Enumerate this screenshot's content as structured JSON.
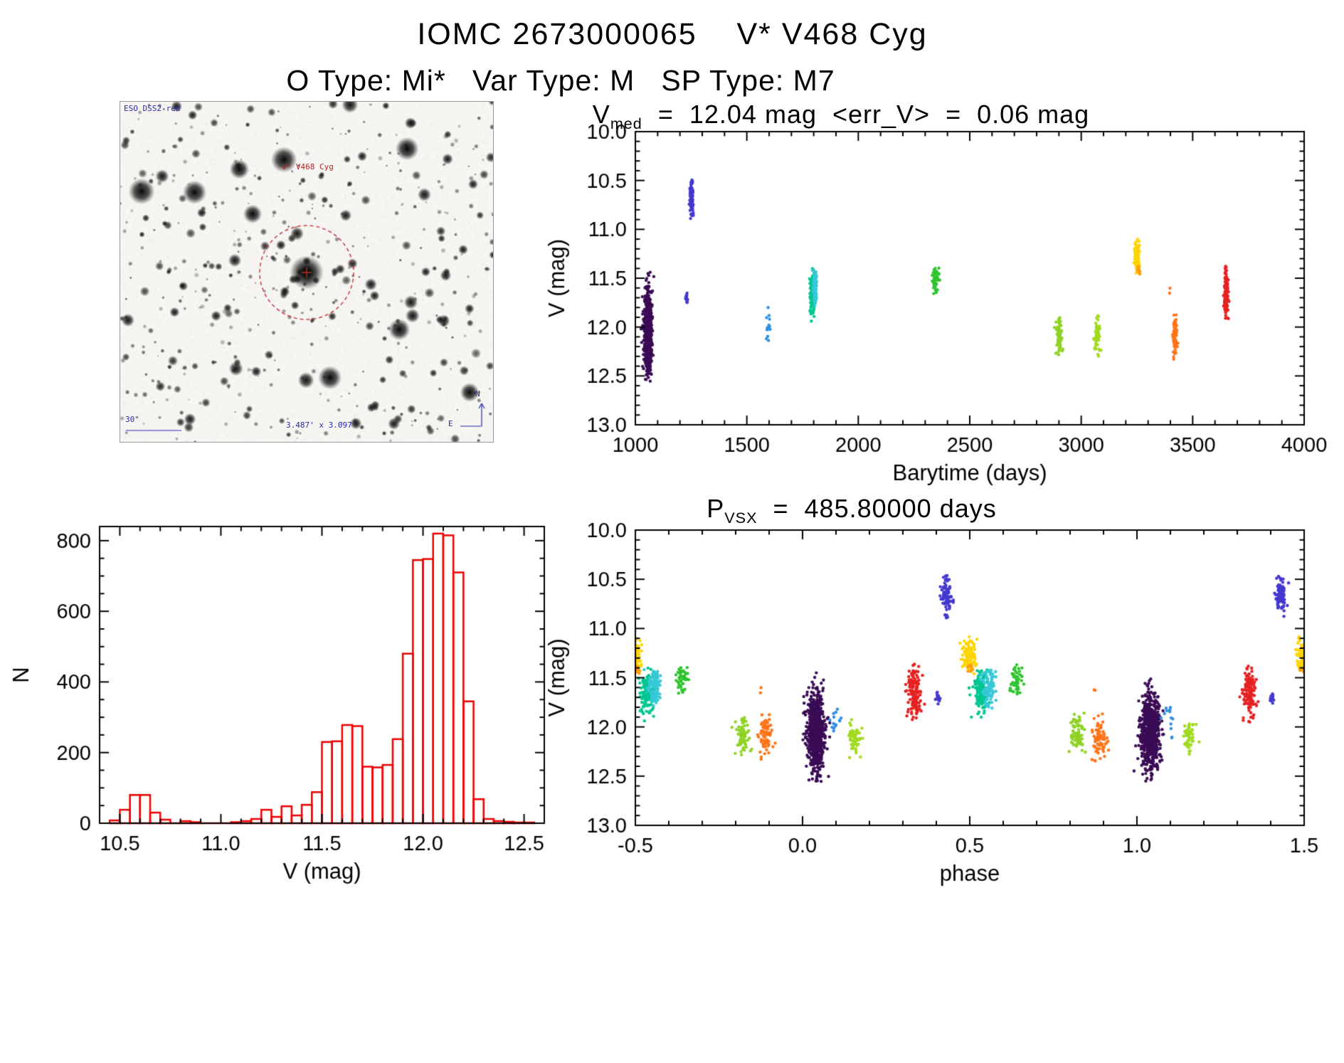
{
  "header": {
    "title": "IOMC 2673000065    V* V468 Cyg",
    "subtitle": "O Type: Mi*   Var Type: M   SP Type: M7"
  },
  "finder": {
    "survey_label": "ESO DSS2-red",
    "star_label": "V* V468 Cyg",
    "scale_label": "30\"",
    "fov_label": "3.487' x 3.097'",
    "compass_north": "N",
    "compass_east": "E",
    "marker_color": "#c03030",
    "annotation_color": "#2b2bb0"
  },
  "chart_data": [
    {
      "id": "lightcurve",
      "type": "scatter",
      "title": {
        "base": "V",
        "sub": "med",
        "rest": "  =  12.04 mag  <err_V>  =  0.06 mag"
      },
      "v_med_mag": 12.04,
      "err_v_mag": 0.06,
      "xlabel": "Barytime (days)",
      "ylabel": "V (mag)",
      "xlim": [
        1000,
        4000
      ],
      "ylim": [
        10.0,
        13.0
      ],
      "y_inverted": true,
      "xtick_vals": [
        1000,
        1500,
        2000,
        2500,
        3000,
        3500,
        4000
      ],
      "xtick_labels": [
        "1000",
        "1500",
        "2000",
        "2500",
        "3000",
        "3500",
        "4000"
      ],
      "ytick_vals": [
        10.0,
        10.5,
        11.0,
        11.5,
        12.0,
        12.5,
        13.0
      ],
      "ytick_labels": [
        "10.0",
        "10.5",
        "11.0",
        "11.5",
        "12.0",
        "12.5",
        "13.0"
      ],
      "xminor": 100,
      "yminor": 0.1,
      "clusters": [
        {
          "label": "epoch1",
          "color": "#3a0c55",
          "n": 700,
          "t": 1057,
          "t_sig": 9,
          "v": 12.06,
          "v_sig": 0.2,
          "v_min": 11.42,
          "v_max": 12.56,
          "phase": 0.04,
          "ph_sig": 0.014
        },
        {
          "label": "epoch2a",
          "color": "#4338cf",
          "n": 14,
          "t": 1231,
          "t_sig": 2,
          "v": 11.71,
          "v_sig": 0.03,
          "v_min": 11.64,
          "v_max": 11.78,
          "phase": 0.405,
          "ph_sig": 0.004
        },
        {
          "label": "epoch2",
          "color": "#4338cf",
          "n": 85,
          "t": 1253,
          "t_sig": 4,
          "v": 10.67,
          "v_sig": 0.1,
          "v_min": 10.46,
          "v_max": 10.92,
          "phase": 0.43,
          "ph_sig": 0.007
        },
        {
          "label": "epoch3",
          "color": "#2f8fe0",
          "n": 14,
          "t": 1598,
          "t_sig": 5,
          "v": 11.98,
          "v_sig": 0.1,
          "v_min": 11.78,
          "v_max": 12.14,
          "phase": 0.095,
          "ph_sig": 0.009
        },
        {
          "label": "epoch4a",
          "color": "#00c690",
          "n": 130,
          "t": 1793,
          "t_sig": 5,
          "v": 11.64,
          "v_sig": 0.12,
          "v_min": 11.4,
          "v_max": 11.94,
          "phase": 0.535,
          "ph_sig": 0.011
        },
        {
          "label": "epoch4b",
          "color": "#38c8d8",
          "n": 95,
          "t": 1806,
          "t_sig": 4,
          "v": 11.58,
          "v_sig": 0.1,
          "v_min": 11.4,
          "v_max": 11.82,
          "phase": 0.557,
          "ph_sig": 0.01
        },
        {
          "label": "epoch5",
          "color": "#2ec42e",
          "n": 45,
          "t": 2348,
          "t_sig": 8,
          "v": 11.52,
          "v_sig": 0.07,
          "v_min": 11.36,
          "v_max": 11.68,
          "phase": 0.64,
          "ph_sig": 0.009
        },
        {
          "label": "epoch6",
          "color": "#8fd225",
          "n": 75,
          "t": 2900,
          "t_sig": 7,
          "v": 12.08,
          "v_sig": 0.11,
          "v_min": 11.85,
          "v_max": 12.32,
          "phase": 0.82,
          "ph_sig": 0.011
        },
        {
          "label": "epoch7",
          "color": "#a2da20",
          "n": 55,
          "t": 3072,
          "t_sig": 7,
          "v": 12.1,
          "v_sig": 0.1,
          "v_min": 11.88,
          "v_max": 12.32,
          "phase": 0.155,
          "ph_sig": 0.01
        },
        {
          "label": "epoch8",
          "color": "#ffd400",
          "n": 95,
          "t": 3250,
          "t_sig": 6,
          "v": 11.27,
          "v_sig": 0.08,
          "v_min": 11.08,
          "v_max": 11.47,
          "phase": 0.498,
          "ph_sig": 0.011
        },
        {
          "label": "epoch8b",
          "color": "#ff9d00",
          "n": 10,
          "t": 3257,
          "t_sig": 3,
          "v": 11.42,
          "v_sig": 0.03,
          "v_min": 11.35,
          "v_max": 11.49,
          "phase": 0.503,
          "ph_sig": 0.005
        },
        {
          "label": "epoch9",
          "color": "#ff7418",
          "n": 75,
          "t": 3420,
          "t_sig": 5,
          "v": 12.1,
          "v_sig": 0.11,
          "v_min": 11.86,
          "v_max": 12.37,
          "phase": 0.888,
          "ph_sig": 0.011
        },
        {
          "label": "epoch9b",
          "color": "#ff7418",
          "n": 2,
          "t": 3396,
          "t_sig": 2,
          "v": 11.62,
          "v_sig": 0.02,
          "v_min": 11.58,
          "v_max": 11.66,
          "phase": 0.873,
          "ph_sig": 0.003
        },
        {
          "label": "epoch10",
          "color": "#e52222",
          "n": 130,
          "t": 3650,
          "t_sig": 5,
          "v": 11.64,
          "v_sig": 0.13,
          "v_min": 11.36,
          "v_max": 11.97,
          "phase": 0.335,
          "ph_sig": 0.01
        }
      ]
    },
    {
      "id": "histogram",
      "type": "bar",
      "xlabel": "V (mag)",
      "ylabel": "N",
      "xlim": [
        10.4,
        12.6
      ],
      "ylim": [
        0,
        840
      ],
      "y_inverted": false,
      "xtick_vals": [
        10.5,
        11.0,
        11.5,
        12.0,
        12.5
      ],
      "xtick_labels": [
        "10.5",
        "11.0",
        "11.5",
        "12.0",
        "12.5"
      ],
      "ytick_vals": [
        0,
        200,
        400,
        600,
        800
      ],
      "ytick_labels": [
        "0",
        "200",
        "400",
        "600",
        "800"
      ],
      "xminor": 0.1,
      "yminor": 50,
      "bar_color": "#ee0000",
      "bin_start": 10.45,
      "bin_width": 0.05,
      "values": [
        8,
        38,
        80,
        80,
        30,
        10,
        0,
        6,
        3,
        0,
        0,
        0,
        3,
        6,
        12,
        38,
        18,
        48,
        22,
        52,
        88,
        230,
        232,
        278,
        275,
        160,
        158,
        165,
        238,
        480,
        745,
        748,
        820,
        815,
        710,
        345,
        68,
        12,
        6,
        4,
        2,
        2
      ]
    },
    {
      "id": "phase",
      "type": "scatter",
      "title": {
        "base": "P",
        "sub": "VSX",
        "rest": "  =  485.80000 days"
      },
      "period_days": 485.8,
      "xlabel": "phase",
      "ylabel": "V (mag)",
      "xlim": [
        -0.5,
        1.5
      ],
      "ylim": [
        10.0,
        13.0
      ],
      "y_inverted": true,
      "xtick_vals": [
        -0.5,
        0.0,
        0.5,
        1.0,
        1.5
      ],
      "xtick_labels": [
        "-0.5",
        "0.0",
        "0.5",
        "1.0",
        "1.5"
      ],
      "ytick_vals": [
        10.0,
        10.5,
        11.0,
        11.5,
        12.0,
        12.5,
        13.0
      ],
      "ytick_labels": [
        "10.0",
        "10.5",
        "11.0",
        "11.5",
        "12.0",
        "12.5",
        "13.0"
      ],
      "xminor": 0.1,
      "yminor": 0.1,
      "use_clusters_of": "lightcurve",
      "fold_copies": [
        -1,
        0,
        1
      ]
    }
  ]
}
